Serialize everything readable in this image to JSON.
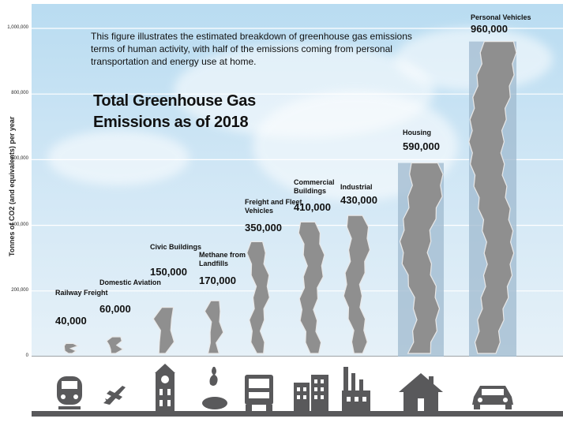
{
  "intro_text": "This figure illustrates the estimated breakdown of greenhouse gas emissions terms of human activity, with half of the emissions coming from personal transportation and energy use at home.",
  "title_line1": "Total Greenhouse Gas",
  "title_line2": "Emissions as of 2018",
  "colors": {
    "sky_top": "#b9dcf1",
    "bar_highlight": "#9fb9cf",
    "smoke": "#8f8f8f",
    "icon": "#59595b"
  },
  "chart_data": {
    "type": "bar",
    "title": "Total Greenhouse Gas Emissions as of 2018",
    "ylabel": "Tonnes of CO2 (and equivalents) per year",
    "ylim": [
      0,
      1000000
    ],
    "yticks": [
      "0",
      "200,000",
      "400,000",
      "600,000",
      "800,000",
      "1,000,000"
    ],
    "categories": [
      "Railway Freight",
      "Domestic Aviation",
      "Civic Buildings",
      "Methane from Landfills",
      "Freight and Fleet Vehicles",
      "Commercial Buildings",
      "Industrial",
      "Housing",
      "Personal Vehicles"
    ],
    "values": [
      40000,
      60000,
      150000,
      170000,
      350000,
      410000,
      430000,
      590000,
      960000
    ],
    "value_labels": [
      "40,000",
      "60,000",
      "150,000",
      "170,000",
      "350,000",
      "410,000",
      "430,000",
      "590,000",
      "960,000"
    ],
    "highlighted": [
      "Housing",
      "Personal Vehicles"
    ],
    "icons": [
      "train-icon",
      "airplane-icon",
      "clock-tower-icon",
      "apple-core-icon",
      "truck-icon",
      "office-buildings-icon",
      "factory-icon",
      "house-icon",
      "car-icon"
    ]
  }
}
